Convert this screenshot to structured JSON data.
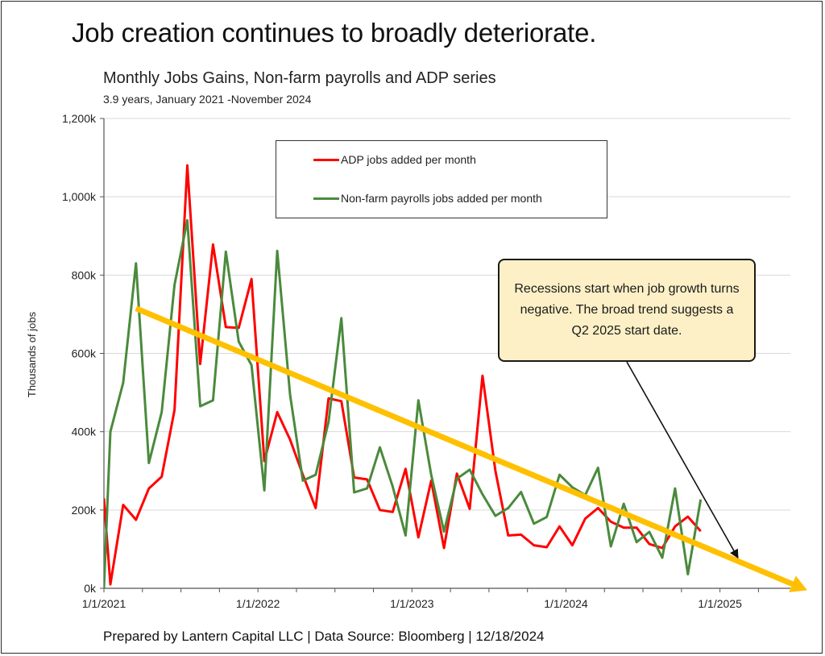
{
  "header": {
    "title": "Job creation continues to broadly deteriorate.",
    "subtitle": "Monthly Jobs Gains, Non-farm payrolls and ADP series",
    "period": "3.9 years, January 2021 -November 2024"
  },
  "footer": {
    "text": "Prepared by Lantern Capital LLC | Data Source: Bloomberg | 12/18/2024"
  },
  "legend": {
    "adp": "ADP jobs added per month",
    "nfp": "Non-farm payrolls jobs added per month"
  },
  "callout": {
    "text": "Recessions start when job growth turns negative. The broad trend suggests a Q2 2025 start date."
  },
  "colors": {
    "adp": "#ff0000",
    "nfp": "#4a8a3c",
    "trend": "#ffc000",
    "callout_bg": "#fdf0c6",
    "grid": "#d9d9d9"
  },
  "chart_data": {
    "type": "line",
    "title": "Monthly Jobs Gains, Non-farm payrolls and ADP series",
    "subtitle": "3.9 years, January 2021 -November 2024",
    "xlabel": "",
    "ylabel": "Thousands of jobs",
    "ylim": [
      0,
      1200
    ],
    "xlim": [
      "2021-01-01",
      "2025-07-01"
    ],
    "grid": true,
    "legend_position": "top-center",
    "y_ticks": [
      {
        "value": 0,
        "label": "0k"
      },
      {
        "value": 200,
        "label": "200k"
      },
      {
        "value": 400,
        "label": "400k"
      },
      {
        "value": 600,
        "label": "600k"
      },
      {
        "value": 800,
        "label": "800k"
      },
      {
        "value": 1000,
        "label": "1,000k"
      },
      {
        "value": 1200,
        "label": "1,200k"
      }
    ],
    "x_ticks": [
      {
        "month_index": 0,
        "label": "1/1/2021"
      },
      {
        "month_index": 12,
        "label": "1/1/2022"
      },
      {
        "month_index": 24,
        "label": "1/1/2023"
      },
      {
        "month_index": 36,
        "label": "1/1/2024"
      },
      {
        "month_index": 48,
        "label": "1/1/2025"
      }
    ],
    "x_minor_tick_every_months": 3,
    "x_axis_end_month_index": 53.5,
    "start_month": "2021-01",
    "series_start_month_index": 0.5,
    "series": [
      {
        "name": "ADP jobs added per month",
        "color_key": "adp",
        "start_value": 230,
        "values": [
          10,
          213,
          175,
          255,
          285,
          455,
          1080,
          573,
          878,
          667,
          665,
          790,
          325,
          450,
          380,
          290,
          205,
          485,
          478,
          283,
          278,
          200,
          195,
          305,
          130,
          275,
          103,
          293,
          203,
          543,
          300,
          135,
          137,
          110,
          105,
          158,
          110,
          178,
          205,
          170,
          155,
          155,
          113,
          103,
          158,
          183,
          146
        ]
      },
      {
        "name": "Non-farm payrolls jobs added per month",
        "color_key": "nfp",
        "start_value": 0,
        "values": [
          400,
          525,
          830,
          320,
          450,
          775,
          940,
          465,
          480,
          860,
          630,
          570,
          250,
          862,
          495,
          275,
          290,
          425,
          690,
          245,
          255,
          360,
          260,
          135,
          480,
          290,
          145,
          280,
          303,
          240,
          185,
          205,
          246,
          165,
          182,
          290,
          258,
          238,
          308,
          107,
          216,
          118,
          144,
          78,
          255,
          36,
          227
        ]
      }
    ],
    "trend_line": {
      "name": "Broad trend",
      "from": {
        "month_index": 2.5,
        "value": 715
      },
      "to": {
        "month_index": 54.8,
        "value": -5
      }
    },
    "annotation": {
      "text": "Recessions start when job growth turns negative. The broad trend suggests a Q2 2025 start date.",
      "arrow_to": {
        "month_index": 49.4,
        "value": 78
      }
    }
  }
}
